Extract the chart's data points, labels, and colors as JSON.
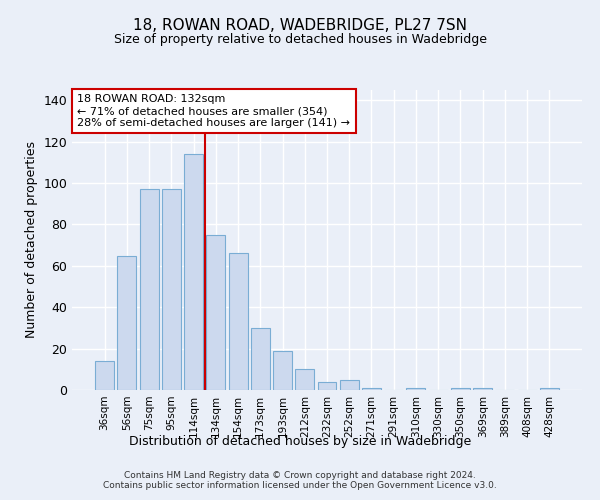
{
  "title": "18, ROWAN ROAD, WADEBRIDGE, PL27 7SN",
  "subtitle": "Size of property relative to detached houses in Wadebridge",
  "xlabel": "Distribution of detached houses by size in Wadebridge",
  "ylabel": "Number of detached properties",
  "categories": [
    "36sqm",
    "56sqm",
    "75sqm",
    "95sqm",
    "114sqm",
    "134sqm",
    "154sqm",
    "173sqm",
    "193sqm",
    "212sqm",
    "232sqm",
    "252sqm",
    "271sqm",
    "291sqm",
    "310sqm",
    "330sqm",
    "350sqm",
    "369sqm",
    "389sqm",
    "408sqm",
    "428sqm"
  ],
  "values": [
    14,
    65,
    97,
    97,
    114,
    75,
    66,
    30,
    19,
    10,
    4,
    5,
    1,
    0,
    1,
    0,
    1,
    1,
    0,
    0,
    1
  ],
  "bar_color": "#ccd9ee",
  "bar_edge_color": "#7aadd4",
  "vline_x_index": 5,
  "vline_color": "#cc0000",
  "annotation_line1": "18 ROWAN ROAD: 132sqm",
  "annotation_line2": "← 71% of detached houses are smaller (354)",
  "annotation_line3": "28% of semi-detached houses are larger (141) →",
  "annotation_box_color": "#ffffff",
  "annotation_box_edge": "#cc0000",
  "ylim": [
    0,
    145
  ],
  "yticks": [
    0,
    20,
    40,
    60,
    80,
    100,
    120,
    140
  ],
  "bg_color": "#eaeff8",
  "grid_color": "#ffffff",
  "title_fontsize": 11,
  "subtitle_fontsize": 9,
  "footer": "Contains HM Land Registry data © Crown copyright and database right 2024.\nContains public sector information licensed under the Open Government Licence v3.0."
}
